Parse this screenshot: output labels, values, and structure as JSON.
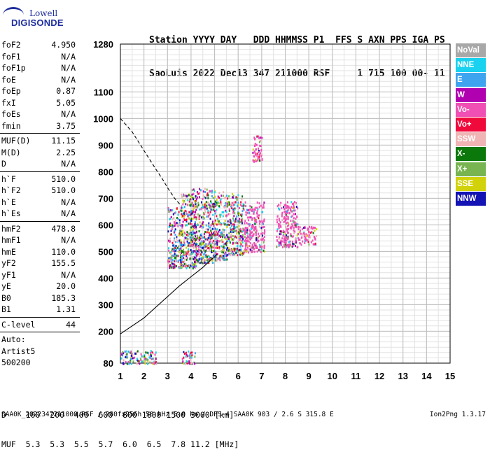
{
  "logo": {
    "line1": "Lowell",
    "line2": "DIGISONDE"
  },
  "header": {
    "labels": "Station YYYY DAY   DDD HHMMSS P1  FFS S AXN PPS IGA PS",
    "values": "SaoLuis 2022 Dec13 347 211000 RSF     1 715 100 00- 11"
  },
  "params": [
    {
      "label": "foF2",
      "value": "4.950"
    },
    {
      "label": "foF1",
      "value": "N/A"
    },
    {
      "label": "foF1p",
      "value": "N/A"
    },
    {
      "label": "foE",
      "value": "N/A"
    },
    {
      "label": "foEp",
      "value": "0.87"
    },
    {
      "label": "fxI",
      "value": "5.05"
    },
    {
      "label": "foEs",
      "value": "N/A"
    },
    {
      "label": "fmin",
      "value": "3.75"
    },
    {
      "sep": true
    },
    {
      "label": "MUF(D)",
      "value": "11.15"
    },
    {
      "label": "M(D)",
      "value": "2.25"
    },
    {
      "label": "D",
      "value": "N/A"
    },
    {
      "sep": true
    },
    {
      "label": "h`F",
      "value": "510.0"
    },
    {
      "label": "h`F2",
      "value": "510.0"
    },
    {
      "label": "h`E",
      "value": "N/A"
    },
    {
      "label": "h`Es",
      "value": "N/A"
    },
    {
      "sep": true
    },
    {
      "label": "hmF2",
      "value": "478.8"
    },
    {
      "label": "hmF1",
      "value": "N/A"
    },
    {
      "label": "hmE",
      "value": "110.0"
    },
    {
      "label": "yF2",
      "value": "155.5"
    },
    {
      "label": "yF1",
      "value": "N/A"
    },
    {
      "label": "yE",
      "value": "20.0"
    },
    {
      "label": "B0",
      "value": "185.3"
    },
    {
      "label": "B1",
      "value": "1.31"
    },
    {
      "sep": true
    },
    {
      "label": "C-level",
      "value": "44"
    },
    {
      "sep": true
    }
  ],
  "auto": [
    "Auto:",
    "Artist5",
    "500200"
  ],
  "legend": [
    {
      "label": "NoVal",
      "color": "#a8a8a8"
    },
    {
      "label": "NNE",
      "color": "#19d2f0"
    },
    {
      "label": "E",
      "color": "#3ea4f0"
    },
    {
      "label": "W",
      "color": "#b000b0"
    },
    {
      "label": "Vo-",
      "color": "#f050b4"
    },
    {
      "label": "Vo+",
      "color": "#f00a3c"
    },
    {
      "label": "SSW",
      "color": "#f0b4b4"
    },
    {
      "label": "X-",
      "color": "#0a780a"
    },
    {
      "label": "X+",
      "color": "#78b450"
    },
    {
      "label": "SSE",
      "color": "#d2d20a"
    },
    {
      "label": "NNW",
      "color": "#1414b4"
    }
  ],
  "distance_table": {
    "d_label": "D",
    "muf_label": "MUF",
    "distances": [
      "100",
      "200",
      "400",
      "600",
      "800",
      "1000",
      "1500",
      "3000"
    ],
    "d_unit": "[km]",
    "mufs": [
      "5.3",
      "5.3",
      "5.5",
      "5.7",
      "6.0",
      "6.5",
      "7.8",
      "11.2"
    ],
    "muf_unit": "[MHz]"
  },
  "footer": {
    "left": "SAA0K_2022347211000.RSF / 280fx256h 50 kHz 5.0 km / DPS-4 SAA0K 903 / 2.6 S 315.8 E",
    "right": "Ion2Png 1.3.17"
  },
  "chart_data": {
    "type": "scatter",
    "title": "",
    "xlabel": "",
    "ylabel": "",
    "xlim": [
      1,
      15
    ],
    "ylim": [
      80,
      1280
    ],
    "x_ticks": [
      1,
      2,
      3,
      4,
      5,
      6,
      7,
      8,
      9,
      10,
      11,
      12,
      13,
      14,
      15
    ],
    "y_ticks": [
      80,
      200,
      300,
      400,
      500,
      600,
      700,
      800,
      900,
      1000,
      1100,
      1280
    ],
    "minor_x_step": 0.5,
    "minor_y_step": 20,
    "grid": true,
    "legend_position": "right",
    "series": [
      {
        "points": [
          [
            1.0,
            190
          ],
          [
            2.0,
            250
          ],
          [
            3.0,
            330
          ],
          [
            3.5,
            370
          ],
          [
            4.0,
            405
          ],
          [
            4.5,
            440
          ],
          [
            4.8,
            465
          ],
          [
            5.0,
            480
          ],
          [
            5.1,
            490
          ]
        ]
      },
      {
        "style": "dashed",
        "points": [
          [
            1.0,
            1000
          ],
          [
            1.5,
            950
          ],
          [
            2.0,
            880
          ],
          [
            2.5,
            810
          ],
          [
            2.8,
            770
          ],
          [
            3.0,
            740
          ],
          [
            3.3,
            700
          ],
          [
            3.6,
            670
          ]
        ]
      }
    ],
    "echo_regions": [
      {
        "freq": [
          3.0,
          3.6
        ],
        "height": [
          440,
          670
        ]
      },
      {
        "freq": [
          3.5,
          4.2
        ],
        "height": [
          440,
          720
        ]
      },
      {
        "freq": [
          4.0,
          4.9
        ],
        "height": [
          460,
          740
        ]
      },
      {
        "freq": [
          4.9,
          5.5
        ],
        "height": [
          470,
          730
        ]
      },
      {
        "freq": [
          5.5,
          6.2
        ],
        "height": [
          490,
          720
        ]
      },
      {
        "freq": [
          6.2,
          7.1
        ],
        "height": [
          500,
          690
        ]
      },
      {
        "freq": [
          7.6,
          8.5
        ],
        "height": [
          520,
          690
        ]
      },
      {
        "freq": [
          8.5,
          9.3
        ],
        "height": [
          530,
          600
        ]
      },
      {
        "freq": [
          1.0,
          2.5
        ],
        "height": [
          80,
          130
        ]
      },
      {
        "freq": [
          3.6,
          4.2
        ],
        "height": [
          80,
          130
        ]
      },
      {
        "freq": [
          6.6,
          7.0
        ],
        "height": [
          840,
          940
        ]
      }
    ]
  }
}
